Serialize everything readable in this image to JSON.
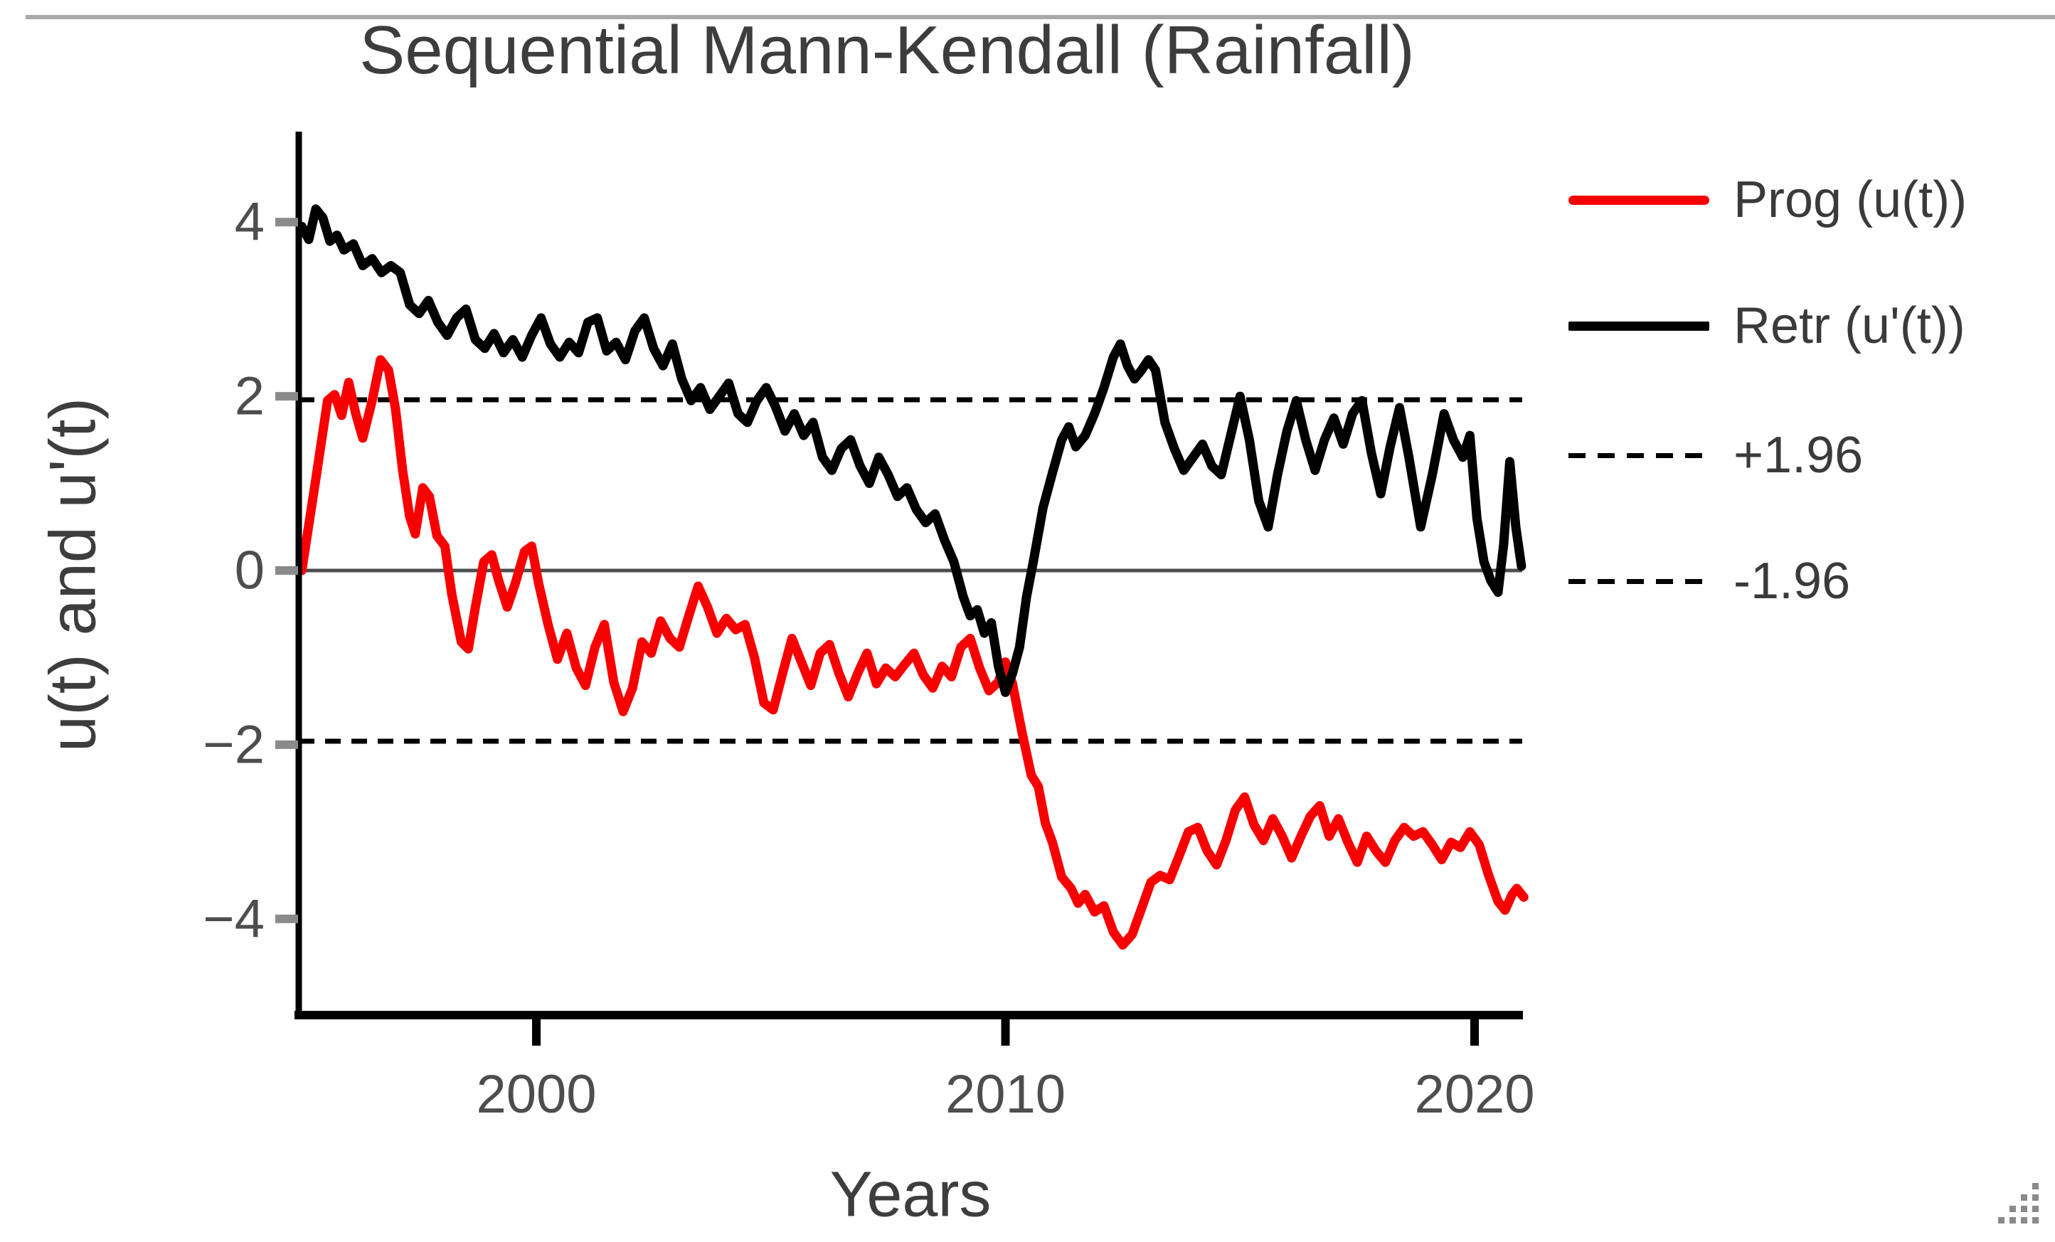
{
  "chrome": {
    "top_divider_color": "#a9a9a9",
    "resize_grip_icon": "resize-grip-icon"
  },
  "chart_data": {
    "type": "line",
    "title": "Sequential Mann-Kendall (Rainfall)",
    "xlabel": "Years",
    "ylabel": "u(t) and u'(t)",
    "xlim": [
      1994.9,
      2021.3
    ],
    "ylim": [
      -5.1,
      5.0
    ],
    "grid": false,
    "xticks": {
      "values": [
        2000,
        2010,
        2020
      ],
      "labels": [
        "2000",
        "2010",
        "2020"
      ]
    },
    "yticks": {
      "values": [
        4,
        2,
        0,
        -2,
        -4
      ],
      "labels": [
        "4",
        "2",
        "0",
        "−2",
        "−4"
      ]
    },
    "zero_line": {
      "value": 0,
      "color": "#4d4d4d"
    },
    "reference_lines": [
      {
        "label": "+1.96",
        "value": 1.96,
        "style": "dashed",
        "color": "#000000"
      },
      {
        "label": "-1.96",
        "value": -1.96,
        "style": "dashed",
        "color": "#000000"
      }
    ],
    "legend": {
      "position": "right",
      "items": [
        {
          "label": "Prog (u(t))",
          "swatch": "solid",
          "color": "#f90000"
        },
        {
          "label": "Retr (u'(t))",
          "swatch": "solid",
          "color": "#000000"
        },
        {
          "label": "+1.96",
          "swatch": "dashed",
          "color": "#000000"
        },
        {
          "label": "-1.96",
          "swatch": "dashed",
          "color": "#000000"
        }
      ]
    },
    "series": [
      {
        "name": "Prog (u(t))",
        "color": "#f90000",
        "style": "solid",
        "points": [
          [
            1995.0,
            0.0
          ],
          [
            1995.3,
            1.05
          ],
          [
            1995.55,
            1.95
          ],
          [
            1995.7,
            2.02
          ],
          [
            1995.85,
            1.78
          ],
          [
            1996.0,
            2.16
          ],
          [
            1996.15,
            1.8
          ],
          [
            1996.3,
            1.52
          ],
          [
            1996.5,
            1.95
          ],
          [
            1996.68,
            2.42
          ],
          [
            1996.85,
            2.3
          ],
          [
            1997.0,
            1.85
          ],
          [
            1997.15,
            1.15
          ],
          [
            1997.3,
            0.62
          ],
          [
            1997.42,
            0.42
          ],
          [
            1997.58,
            0.95
          ],
          [
            1997.72,
            0.85
          ],
          [
            1997.88,
            0.4
          ],
          [
            1998.05,
            0.28
          ],
          [
            1998.2,
            -0.28
          ],
          [
            1998.4,
            -0.82
          ],
          [
            1998.55,
            -0.9
          ],
          [
            1998.7,
            -0.42
          ],
          [
            1998.88,
            0.1
          ],
          [
            1999.05,
            0.18
          ],
          [
            1999.2,
            -0.12
          ],
          [
            1999.38,
            -0.42
          ],
          [
            1999.55,
            -0.15
          ],
          [
            1999.75,
            0.22
          ],
          [
            1999.9,
            0.28
          ],
          [
            2000.05,
            -0.15
          ],
          [
            2000.25,
            -0.62
          ],
          [
            2000.45,
            -1.02
          ],
          [
            2000.65,
            -0.72
          ],
          [
            2000.85,
            -1.12
          ],
          [
            2001.05,
            -1.32
          ],
          [
            2001.25,
            -0.88
          ],
          [
            2001.45,
            -0.62
          ],
          [
            2001.65,
            -1.28
          ],
          [
            2001.85,
            -1.62
          ],
          [
            2002.05,
            -1.35
          ],
          [
            2002.25,
            -0.82
          ],
          [
            2002.45,
            -0.95
          ],
          [
            2002.65,
            -0.58
          ],
          [
            2002.85,
            -0.78
          ],
          [
            2003.05,
            -0.88
          ],
          [
            2003.25,
            -0.52
          ],
          [
            2003.45,
            -0.18
          ],
          [
            2003.65,
            -0.42
          ],
          [
            2003.85,
            -0.72
          ],
          [
            2004.05,
            -0.55
          ],
          [
            2004.25,
            -0.68
          ],
          [
            2004.45,
            -0.62
          ],
          [
            2004.65,
            -1.0
          ],
          [
            2004.85,
            -1.52
          ],
          [
            2005.05,
            -1.6
          ],
          [
            2005.25,
            -1.18
          ],
          [
            2005.45,
            -0.78
          ],
          [
            2005.65,
            -1.05
          ],
          [
            2005.85,
            -1.32
          ],
          [
            2006.05,
            -0.95
          ],
          [
            2006.25,
            -0.85
          ],
          [
            2006.45,
            -1.18
          ],
          [
            2006.65,
            -1.45
          ],
          [
            2006.85,
            -1.18
          ],
          [
            2007.05,
            -0.95
          ],
          [
            2007.25,
            -1.3
          ],
          [
            2007.45,
            -1.12
          ],
          [
            2007.65,
            -1.22
          ],
          [
            2007.85,
            -1.08
          ],
          [
            2008.05,
            -0.95
          ],
          [
            2008.25,
            -1.2
          ],
          [
            2008.45,
            -1.35
          ],
          [
            2008.65,
            -1.1
          ],
          [
            2008.85,
            -1.22
          ],
          [
            2009.05,
            -0.88
          ],
          [
            2009.25,
            -0.78
          ],
          [
            2009.45,
            -1.12
          ],
          [
            2009.65,
            -1.38
          ],
          [
            2009.85,
            -1.28
          ],
          [
            2010.0,
            -1.05
          ],
          [
            2010.15,
            -1.3
          ],
          [
            2010.35,
            -1.85
          ],
          [
            2010.55,
            -2.35
          ],
          [
            2010.7,
            -2.48
          ],
          [
            2010.85,
            -2.9
          ],
          [
            2011.0,
            -3.12
          ],
          [
            2011.2,
            -3.52
          ],
          [
            2011.4,
            -3.65
          ],
          [
            2011.55,
            -3.82
          ],
          [
            2011.7,
            -3.72
          ],
          [
            2011.9,
            -3.92
          ],
          [
            2012.1,
            -3.85
          ],
          [
            2012.3,
            -4.15
          ],
          [
            2012.5,
            -4.3
          ],
          [
            2012.7,
            -4.18
          ],
          [
            2012.9,
            -3.88
          ],
          [
            2013.1,
            -3.58
          ],
          [
            2013.3,
            -3.5
          ],
          [
            2013.5,
            -3.55
          ],
          [
            2013.7,
            -3.28
          ],
          [
            2013.9,
            -3.0
          ],
          [
            2014.1,
            -2.95
          ],
          [
            2014.3,
            -3.22
          ],
          [
            2014.5,
            -3.38
          ],
          [
            2014.7,
            -3.1
          ],
          [
            2014.9,
            -2.75
          ],
          [
            2015.1,
            -2.6
          ],
          [
            2015.3,
            -2.92
          ],
          [
            2015.5,
            -3.1
          ],
          [
            2015.7,
            -2.85
          ],
          [
            2015.9,
            -3.05
          ],
          [
            2016.1,
            -3.3
          ],
          [
            2016.3,
            -3.05
          ],
          [
            2016.5,
            -2.82
          ],
          [
            2016.7,
            -2.7
          ],
          [
            2016.9,
            -3.05
          ],
          [
            2017.1,
            -2.85
          ],
          [
            2017.3,
            -3.12
          ],
          [
            2017.5,
            -3.35
          ],
          [
            2017.7,
            -3.05
          ],
          [
            2017.9,
            -3.22
          ],
          [
            2018.1,
            -3.35
          ],
          [
            2018.3,
            -3.1
          ],
          [
            2018.5,
            -2.95
          ],
          [
            2018.7,
            -3.05
          ],
          [
            2018.9,
            -3.0
          ],
          [
            2019.1,
            -3.15
          ],
          [
            2019.3,
            -3.32
          ],
          [
            2019.5,
            -3.12
          ],
          [
            2019.7,
            -3.18
          ],
          [
            2019.9,
            -3.0
          ],
          [
            2020.1,
            -3.15
          ],
          [
            2020.3,
            -3.5
          ],
          [
            2020.5,
            -3.8
          ],
          [
            2020.65,
            -3.9
          ],
          [
            2020.8,
            -3.72
          ],
          [
            2020.9,
            -3.65
          ],
          [
            2021.05,
            -3.75
          ]
        ]
      },
      {
        "name": "Retr (u'(t))",
        "color": "#000000",
        "style": "solid",
        "points": [
          [
            1995.0,
            3.95
          ],
          [
            1995.15,
            3.8
          ],
          [
            1995.3,
            4.15
          ],
          [
            1995.45,
            4.05
          ],
          [
            1995.6,
            3.78
          ],
          [
            1995.75,
            3.85
          ],
          [
            1995.9,
            3.68
          ],
          [
            1996.1,
            3.75
          ],
          [
            1996.3,
            3.5
          ],
          [
            1996.5,
            3.58
          ],
          [
            1996.7,
            3.42
          ],
          [
            1996.9,
            3.5
          ],
          [
            1997.1,
            3.42
          ],
          [
            1997.3,
            3.05
          ],
          [
            1997.5,
            2.95
          ],
          [
            1997.7,
            3.1
          ],
          [
            1997.9,
            2.85
          ],
          [
            1998.1,
            2.7
          ],
          [
            1998.3,
            2.9
          ],
          [
            1998.5,
            3.0
          ],
          [
            1998.7,
            2.65
          ],
          [
            1998.9,
            2.55
          ],
          [
            1999.1,
            2.72
          ],
          [
            1999.3,
            2.5
          ],
          [
            1999.5,
            2.65
          ],
          [
            1999.7,
            2.45
          ],
          [
            1999.9,
            2.7
          ],
          [
            2000.1,
            2.9
          ],
          [
            2000.3,
            2.6
          ],
          [
            2000.5,
            2.45
          ],
          [
            2000.7,
            2.62
          ],
          [
            2000.9,
            2.5
          ],
          [
            2001.1,
            2.85
          ],
          [
            2001.3,
            2.9
          ],
          [
            2001.5,
            2.52
          ],
          [
            2001.7,
            2.62
          ],
          [
            2001.9,
            2.42
          ],
          [
            2002.1,
            2.75
          ],
          [
            2002.3,
            2.9
          ],
          [
            2002.5,
            2.55
          ],
          [
            2002.7,
            2.35
          ],
          [
            2002.9,
            2.6
          ],
          [
            2003.1,
            2.2
          ],
          [
            2003.3,
            1.95
          ],
          [
            2003.5,
            2.1
          ],
          [
            2003.7,
            1.85
          ],
          [
            2003.9,
            2.0
          ],
          [
            2004.1,
            2.15
          ],
          [
            2004.3,
            1.8
          ],
          [
            2004.5,
            1.7
          ],
          [
            2004.7,
            1.95
          ],
          [
            2004.9,
            2.1
          ],
          [
            2005.1,
            1.88
          ],
          [
            2005.3,
            1.6
          ],
          [
            2005.5,
            1.8
          ],
          [
            2005.7,
            1.55
          ],
          [
            2005.9,
            1.7
          ],
          [
            2006.1,
            1.3
          ],
          [
            2006.3,
            1.15
          ],
          [
            2006.5,
            1.4
          ],
          [
            2006.7,
            1.5
          ],
          [
            2006.9,
            1.2
          ],
          [
            2007.1,
            1.0
          ],
          [
            2007.3,
            1.3
          ],
          [
            2007.5,
            1.1
          ],
          [
            2007.7,
            0.85
          ],
          [
            2007.9,
            0.95
          ],
          [
            2008.1,
            0.7
          ],
          [
            2008.3,
            0.55
          ],
          [
            2008.5,
            0.65
          ],
          [
            2008.7,
            0.35
          ],
          [
            2008.9,
            0.1
          ],
          [
            2009.1,
            -0.3
          ],
          [
            2009.25,
            -0.52
          ],
          [
            2009.4,
            -0.45
          ],
          [
            2009.55,
            -0.72
          ],
          [
            2009.7,
            -0.6
          ],
          [
            2009.85,
            -1.1
          ],
          [
            2010.0,
            -1.4
          ],
          [
            2010.15,
            -1.18
          ],
          [
            2010.3,
            -0.88
          ],
          [
            2010.45,
            -0.3
          ],
          [
            2010.6,
            0.12
          ],
          [
            2010.8,
            0.72
          ],
          [
            2011.0,
            1.12
          ],
          [
            2011.2,
            1.5
          ],
          [
            2011.35,
            1.65
          ],
          [
            2011.5,
            1.42
          ],
          [
            2011.7,
            1.55
          ],
          [
            2011.9,
            1.8
          ],
          [
            2012.1,
            2.1
          ],
          [
            2012.3,
            2.45
          ],
          [
            2012.45,
            2.6
          ],
          [
            2012.6,
            2.35
          ],
          [
            2012.75,
            2.2
          ],
          [
            2012.9,
            2.3
          ],
          [
            2013.05,
            2.42
          ],
          [
            2013.2,
            2.3
          ],
          [
            2013.4,
            1.7
          ],
          [
            2013.6,
            1.4
          ],
          [
            2013.8,
            1.15
          ],
          [
            2014.0,
            1.3
          ],
          [
            2014.2,
            1.45
          ],
          [
            2014.4,
            1.2
          ],
          [
            2014.6,
            1.1
          ],
          [
            2014.8,
            1.55
          ],
          [
            2015.0,
            2.0
          ],
          [
            2015.2,
            1.5
          ],
          [
            2015.4,
            0.8
          ],
          [
            2015.6,
            0.5
          ],
          [
            2015.8,
            1.1
          ],
          [
            2016.0,
            1.6
          ],
          [
            2016.2,
            1.95
          ],
          [
            2016.4,
            1.5
          ],
          [
            2016.6,
            1.15
          ],
          [
            2016.8,
            1.5
          ],
          [
            2017.0,
            1.75
          ],
          [
            2017.2,
            1.45
          ],
          [
            2017.4,
            1.8
          ],
          [
            2017.6,
            1.95
          ],
          [
            2017.8,
            1.35
          ],
          [
            2018.0,
            0.88
          ],
          [
            2018.2,
            1.42
          ],
          [
            2018.4,
            1.87
          ],
          [
            2018.6,
            1.3
          ],
          [
            2018.85,
            0.5
          ],
          [
            2019.1,
            1.1
          ],
          [
            2019.35,
            1.8
          ],
          [
            2019.55,
            1.5
          ],
          [
            2019.75,
            1.3
          ],
          [
            2019.9,
            1.55
          ],
          [
            2020.05,
            0.6
          ],
          [
            2020.2,
            0.1
          ],
          [
            2020.35,
            -0.12
          ],
          [
            2020.5,
            -0.25
          ],
          [
            2020.62,
            0.3
          ],
          [
            2020.75,
            1.25
          ],
          [
            2020.88,
            0.5
          ],
          [
            2021.0,
            0.05
          ]
        ]
      }
    ]
  }
}
